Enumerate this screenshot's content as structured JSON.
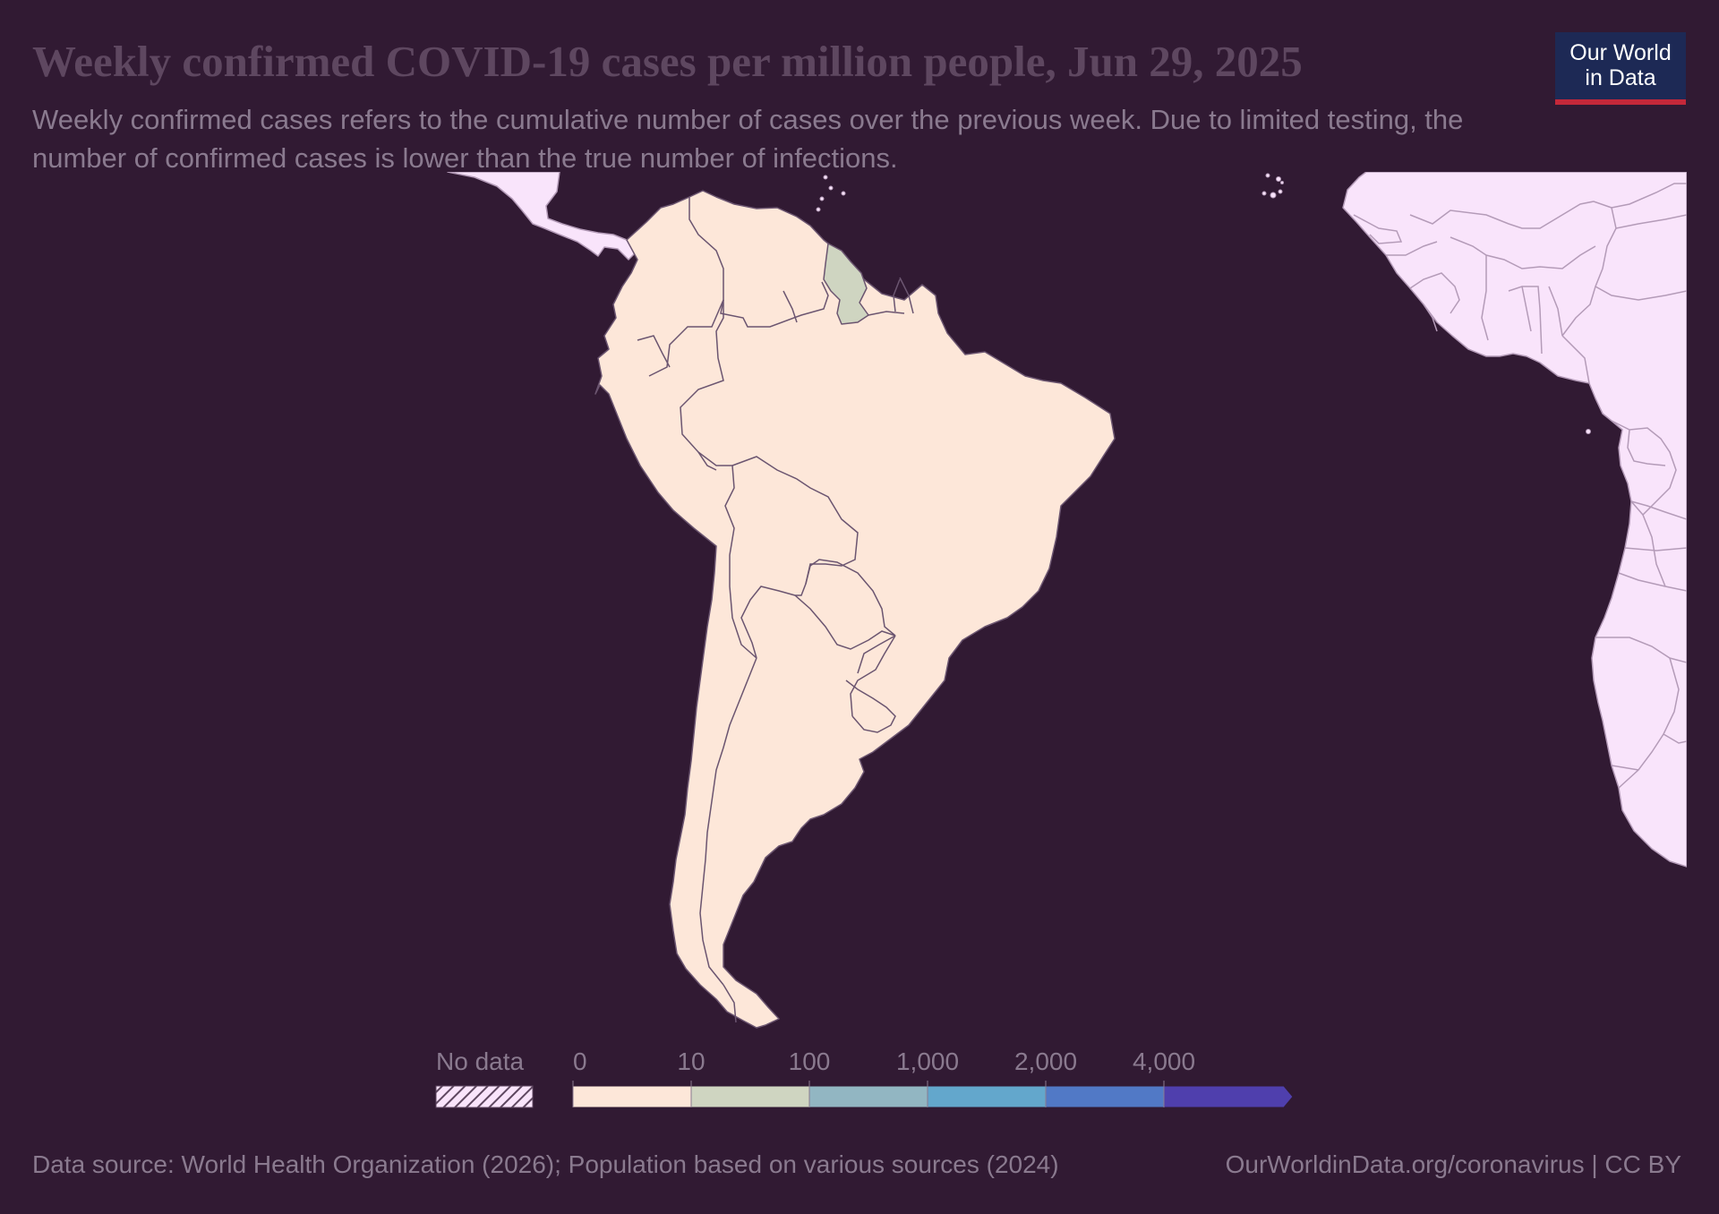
{
  "header": {
    "title": "Weekly confirmed COVID-19 cases per million people, Jun 29, 2025",
    "subtitle": "Weekly confirmed cases refers to the cumulative number of cases over the previous week. Due to limited testing, the number of confirmed cases is lower than the true number of infections."
  },
  "logo": {
    "line1": "Our World",
    "line2": "in Data"
  },
  "legend": {
    "no_data_label": "No data",
    "bins": [
      {
        "label": "0",
        "color": "#fde7d9"
      },
      {
        "label": "10",
        "color": "#cfd5c1"
      },
      {
        "label": "100",
        "color": "#92b6c2"
      },
      {
        "label": "1,000",
        "color": "#63a7cc"
      },
      {
        "label": "2,000",
        "color": "#5179c6"
      },
      {
        "label": "4,000",
        "color": "#4f3fad"
      }
    ]
  },
  "map_colors": {
    "ocean": "#311a33",
    "no_data_land": "#f9e4fb",
    "border": "#6b5570",
    "border_no_data": "#b49bb8"
  },
  "regions": [
    {
      "name": "Guyana",
      "value_bin": "10–100"
    },
    {
      "name": "South America (other countries)",
      "value_bin": "0–10"
    },
    {
      "name": "Central America",
      "value_bin": "No data"
    },
    {
      "name": "Africa",
      "value_bin": "No data"
    }
  ],
  "footer": {
    "source": "Data source: World Health Organization (2026); Population based on various sources (2024)",
    "credit": "OurWorldinData.org/coronavirus | CC BY"
  }
}
